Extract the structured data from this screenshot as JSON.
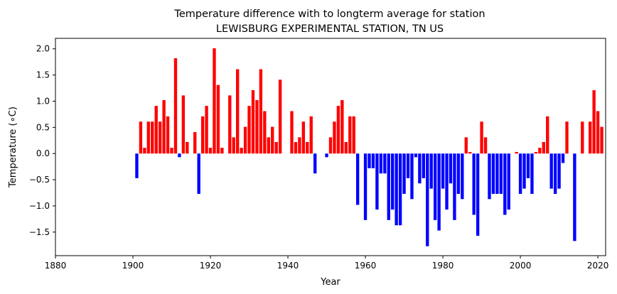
{
  "chart_data": {
    "type": "bar",
    "title_line1": "Temperature difference with to longterm average for station",
    "title_line2": "LEWISBURG EXPERIMENTAL STATION, TN US",
    "xlabel": "Year",
    "ylabel": "Temperature (∘C)",
    "xlim": [
      1880,
      2022
    ],
    "ylim": [
      -1.95,
      2.2
    ],
    "xticks": [
      1880,
      1900,
      1920,
      1940,
      1960,
      1980,
      2000,
      2020
    ],
    "yticks": [
      -1.5,
      -1.0,
      -0.5,
      0.0,
      0.5,
      1.0,
      1.5,
      2.0
    ],
    "ytick_labels": [
      "−1.5",
      "−1.0",
      "−0.5",
      "0.0",
      "0.5",
      "1.0",
      "1.5",
      "2.0"
    ],
    "positive_color": "#ff0000",
    "negative_color": "#0000ff",
    "grid": false,
    "bars": [
      {
        "year": 1901,
        "value": -0.47
      },
      {
        "year": 1902,
        "value": 0.61
      },
      {
        "year": 1903,
        "value": 0.11
      },
      {
        "year": 1904,
        "value": 0.61
      },
      {
        "year": 1905,
        "value": 0.61
      },
      {
        "year": 1906,
        "value": 0.91
      },
      {
        "year": 1907,
        "value": 0.61
      },
      {
        "year": 1908,
        "value": 1.02
      },
      {
        "year": 1909,
        "value": 0.71
      },
      {
        "year": 1910,
        "value": 0.11
      },
      {
        "year": 1911,
        "value": 1.82
      },
      {
        "year": 1912,
        "value": -0.07
      },
      {
        "year": 1913,
        "value": 1.11
      },
      {
        "year": 1914,
        "value": 0.22
      },
      {
        "year": 1916,
        "value": 0.41
      },
      {
        "year": 1917,
        "value": -0.77
      },
      {
        "year": 1918,
        "value": 0.71
      },
      {
        "year": 1919,
        "value": 0.91
      },
      {
        "year": 1920,
        "value": 0.11
      },
      {
        "year": 1921,
        "value": 2.01
      },
      {
        "year": 1922,
        "value": 1.31
      },
      {
        "year": 1923,
        "value": 0.11
      },
      {
        "year": 1925,
        "value": 1.11
      },
      {
        "year": 1926,
        "value": 0.31
      },
      {
        "year": 1927,
        "value": 1.61
      },
      {
        "year": 1928,
        "value": 0.11
      },
      {
        "year": 1929,
        "value": 0.51
      },
      {
        "year": 1930,
        "value": 0.91
      },
      {
        "year": 1931,
        "value": 1.21
      },
      {
        "year": 1932,
        "value": 1.02
      },
      {
        "year": 1933,
        "value": 1.61
      },
      {
        "year": 1934,
        "value": 0.81
      },
      {
        "year": 1935,
        "value": 0.31
      },
      {
        "year": 1936,
        "value": 0.51
      },
      {
        "year": 1937,
        "value": 0.22
      },
      {
        "year": 1938,
        "value": 1.41
      },
      {
        "year": 1941,
        "value": 0.81
      },
      {
        "year": 1942,
        "value": 0.22
      },
      {
        "year": 1943,
        "value": 0.31
      },
      {
        "year": 1944,
        "value": 0.61
      },
      {
        "year": 1945,
        "value": 0.22
      },
      {
        "year": 1946,
        "value": 0.71
      },
      {
        "year": 1947,
        "value": -0.38
      },
      {
        "year": 1950,
        "value": -0.07
      },
      {
        "year": 1951,
        "value": 0.31
      },
      {
        "year": 1952,
        "value": 0.61
      },
      {
        "year": 1953,
        "value": 0.91
      },
      {
        "year": 1954,
        "value": 1.02
      },
      {
        "year": 1955,
        "value": 0.22
      },
      {
        "year": 1956,
        "value": 0.71
      },
      {
        "year": 1957,
        "value": 0.71
      },
      {
        "year": 1958,
        "value": -0.98
      },
      {
        "year": 1960,
        "value": -1.27
      },
      {
        "year": 1961,
        "value": -0.28
      },
      {
        "year": 1962,
        "value": -0.28
      },
      {
        "year": 1963,
        "value": -1.07
      },
      {
        "year": 1964,
        "value": -0.38
      },
      {
        "year": 1965,
        "value": -0.38
      },
      {
        "year": 1966,
        "value": -1.27
      },
      {
        "year": 1967,
        "value": -1.07
      },
      {
        "year": 1968,
        "value": -1.37
      },
      {
        "year": 1969,
        "value": -1.37
      },
      {
        "year": 1970,
        "value": -0.77
      },
      {
        "year": 1971,
        "value": -0.47
      },
      {
        "year": 1972,
        "value": -0.87
      },
      {
        "year": 1973,
        "value": -0.07
      },
      {
        "year": 1974,
        "value": -0.57
      },
      {
        "year": 1975,
        "value": -0.47
      },
      {
        "year": 1976,
        "value": -1.77
      },
      {
        "year": 1977,
        "value": -0.67
      },
      {
        "year": 1978,
        "value": -1.27
      },
      {
        "year": 1979,
        "value": -1.47
      },
      {
        "year": 1980,
        "value": -0.67
      },
      {
        "year": 1981,
        "value": -1.07
      },
      {
        "year": 1982,
        "value": -0.57
      },
      {
        "year": 1983,
        "value": -1.27
      },
      {
        "year": 1984,
        "value": -0.77
      },
      {
        "year": 1985,
        "value": -0.87
      },
      {
        "year": 1986,
        "value": 0.31
      },
      {
        "year": 1987,
        "value": 0.03
      },
      {
        "year": 1988,
        "value": -1.17
      },
      {
        "year": 1989,
        "value": -1.57
      },
      {
        "year": 1990,
        "value": 0.61
      },
      {
        "year": 1991,
        "value": 0.31
      },
      {
        "year": 1992,
        "value": -0.87
      },
      {
        "year": 1993,
        "value": -0.77
      },
      {
        "year": 1994,
        "value": -0.77
      },
      {
        "year": 1995,
        "value": -0.77
      },
      {
        "year": 1996,
        "value": -1.17
      },
      {
        "year": 1997,
        "value": -1.07
      },
      {
        "year": 1999,
        "value": 0.03
      },
      {
        "year": 2000,
        "value": -0.77
      },
      {
        "year": 2001,
        "value": -0.67
      },
      {
        "year": 2002,
        "value": -0.47
      },
      {
        "year": 2003,
        "value": -0.77
      },
      {
        "year": 2004,
        "value": 0.03
      },
      {
        "year": 2005,
        "value": 0.11
      },
      {
        "year": 2006,
        "value": 0.22
      },
      {
        "year": 2007,
        "value": 0.71
      },
      {
        "year": 2008,
        "value": -0.67
      },
      {
        "year": 2009,
        "value": -0.77
      },
      {
        "year": 2010,
        "value": -0.67
      },
      {
        "year": 2011,
        "value": -0.18
      },
      {
        "year": 2012,
        "value": 0.61
      },
      {
        "year": 2014,
        "value": -1.67
      },
      {
        "year": 2016,
        "value": 0.61
      },
      {
        "year": 2018,
        "value": 0.61
      },
      {
        "year": 2019,
        "value": 1.21
      },
      {
        "year": 2020,
        "value": 0.81
      },
      {
        "year": 2021,
        "value": 0.51
      }
    ]
  }
}
